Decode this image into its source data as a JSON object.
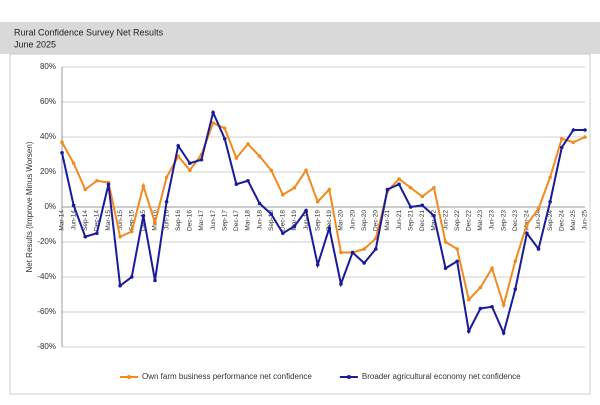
{
  "chart_data": {
    "type": "line",
    "title": "Rural Confidence Survey Net Results",
    "subtitle": "June 2025",
    "y_label": "Net Results (Improve Minus Worsen)",
    "categories": [
      "Mar-14",
      "Jun-14",
      "Sep-14",
      "Dec-14",
      "Mar-15",
      "Jun-15",
      "Sep-15",
      "Dec-15",
      "Mar-16",
      "Jun-16",
      "Sep-16",
      "Dec-16",
      "Mar-17",
      "Jun-17",
      "Sep-17",
      "Dec-17",
      "Mar-18",
      "Jun-18",
      "Sep-18",
      "Dec-18",
      "Mar-19",
      "Jun-19",
      "Sep-19",
      "Dec-19",
      "Mar-20",
      "Jun-20",
      "Sep-20",
      "Dec-20",
      "Mar-21",
      "Jun-21",
      "Sep-21",
      "Dec-21",
      "Mar-22",
      "Jun-22",
      "Sep-22",
      "Dec-22",
      "Mar-23",
      "Jun-23",
      "Sep-23",
      "Dec-23",
      "Mar-24",
      "Jun-24",
      "Sep-24",
      "Dec-24",
      "Mar-25",
      "Jun-25"
    ],
    "series": [
      {
        "name": "Own farm business performance net confidence",
        "color": "#f28a1e",
        "values": [
          37,
          25,
          10,
          15,
          14,
          -17,
          -14,
          12,
          -9,
          17,
          29,
          21,
          30,
          48,
          45,
          28,
          36,
          29,
          21,
          7,
          11,
          21,
          3,
          10,
          -26,
          -26,
          -24,
          -18,
          9,
          16,
          11,
          6,
          11,
          -20,
          -24,
          -53,
          -46,
          -35,
          -56,
          -31,
          -10,
          -1,
          17,
          39,
          37,
          40
        ]
      },
      {
        "name": "Broader agricultural economy net confidence",
        "color": "#1a1a9c",
        "values": [
          31,
          1,
          -17,
          -15,
          13,
          -45,
          -40,
          -5,
          -42,
          3,
          35,
          25,
          27,
          54,
          39,
          13,
          15,
          2,
          -4,
          -15,
          -11,
          -2,
          -33,
          -12,
          -44,
          -26,
          -32,
          -24,
          10,
          13,
          0,
          1,
          -5,
          -35,
          -31,
          -71,
          -58,
          -57,
          -72,
          -47,
          -15,
          -24,
          3,
          34,
          44,
          44
        ]
      }
    ],
    "ylim": [
      -80,
      80
    ],
    "yticks": [
      {
        "value": -80,
        "label": "-80%"
      },
      {
        "value": -60,
        "label": "-60%"
      },
      {
        "value": -40,
        "label": "-40%"
      },
      {
        "value": -20,
        "label": "-20%"
      },
      {
        "value": 0,
        "label": "0%"
      },
      {
        "value": 20,
        "label": "20%"
      },
      {
        "value": 40,
        "label": "40%"
      },
      {
        "value": 60,
        "label": "60%"
      },
      {
        "value": 80,
        "label": "80%"
      }
    ],
    "grid": true,
    "legend": "bottom"
  }
}
